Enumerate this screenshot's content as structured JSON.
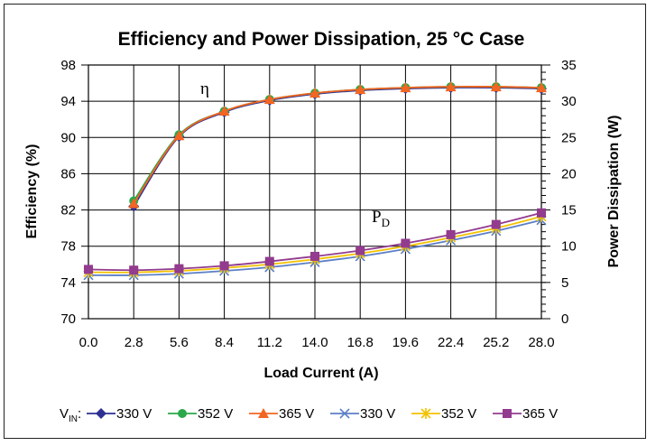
{
  "chart_data": {
    "type": "line",
    "title": "Efficiency and Power Dissipation, 25 °C Case",
    "xlabel": "Load Current (A)",
    "ylabel": "Efficiency (%)",
    "y2label": "Power Dissipation (W)",
    "x_ticks": [
      "0.0",
      "2.8",
      "5.6",
      "8.4",
      "11.2",
      "14.0",
      "16.8",
      "19.6",
      "22.4",
      "25.2",
      "28.0"
    ],
    "y_ticks": [
      "70",
      "74",
      "78",
      "82",
      "86",
      "90",
      "94",
      "98"
    ],
    "y2_ticks": [
      "0",
      "5",
      "10",
      "15",
      "20",
      "25",
      "30",
      "35"
    ],
    "xlim": [
      0,
      28
    ],
    "ylim": [
      70,
      98
    ],
    "y2lim": [
      0,
      35
    ],
    "grid": true,
    "legend_position": "bottom",
    "legend_prefix": {
      "main": "V",
      "sub": "IN",
      "suffix": ":"
    },
    "annotations": {
      "eta": "η",
      "pd_main": "P",
      "pd_sub": "D"
    },
    "series": [
      {
        "name": "330 V",
        "axis": "left",
        "marker": "diamond",
        "color": "#2E3192",
        "x": [
          2.8,
          5.6,
          8.4,
          11.2,
          14.0,
          16.8,
          19.6,
          22.4,
          25.2,
          28.0
        ],
        "values": [
          82.4,
          90.1,
          92.8,
          94.1,
          94.8,
          95.2,
          95.4,
          95.5,
          95.5,
          95.4
        ]
      },
      {
        "name": "352 V",
        "axis": "left",
        "marker": "circle",
        "color": "#2BA84A",
        "x": [
          2.8,
          5.6,
          8.4,
          11.2,
          14.0,
          16.8,
          19.6,
          22.4,
          25.2,
          28.0
        ],
        "values": [
          83.0,
          90.3,
          92.9,
          94.2,
          94.9,
          95.3,
          95.5,
          95.6,
          95.6,
          95.5
        ]
      },
      {
        "name": "365 V",
        "axis": "left",
        "marker": "triangle",
        "color": "#F26522",
        "x": [
          2.8,
          5.6,
          8.4,
          11.2,
          14.0,
          16.8,
          19.6,
          22.4,
          25.2,
          28.0
        ],
        "values": [
          82.7,
          90.2,
          92.9,
          94.2,
          94.9,
          95.3,
          95.5,
          95.6,
          95.6,
          95.5
        ]
      },
      {
        "name": "330 V",
        "axis": "right",
        "marker": "x",
        "color": "#5B7FC7",
        "x": [
          0.0,
          2.8,
          5.6,
          8.4,
          11.2,
          14.0,
          16.8,
          19.6,
          22.4,
          25.2,
          28.0
        ],
        "values": [
          6.0,
          6.0,
          6.2,
          6.6,
          7.1,
          7.8,
          8.6,
          9.6,
          10.8,
          12.1,
          13.6
        ]
      },
      {
        "name": "352 V",
        "axis": "right",
        "marker": "asterisk",
        "color": "#F2C200",
        "x": [
          0.0,
          2.8,
          5.6,
          8.4,
          11.2,
          14.0,
          16.8,
          19.6,
          22.4,
          25.2,
          28.0
        ],
        "values": [
          6.4,
          6.4,
          6.6,
          7.0,
          7.5,
          8.2,
          9.0,
          10.0,
          11.2,
          12.5,
          14.1
        ]
      },
      {
        "name": "365 V",
        "axis": "right",
        "marker": "square",
        "color": "#923B8F",
        "x": [
          0.0,
          2.8,
          5.6,
          8.4,
          11.2,
          14.0,
          16.8,
          19.6,
          22.4,
          25.2,
          28.0
        ],
        "values": [
          6.8,
          6.7,
          6.9,
          7.3,
          7.9,
          8.6,
          9.4,
          10.4,
          11.6,
          13.0,
          14.6
        ]
      }
    ]
  }
}
